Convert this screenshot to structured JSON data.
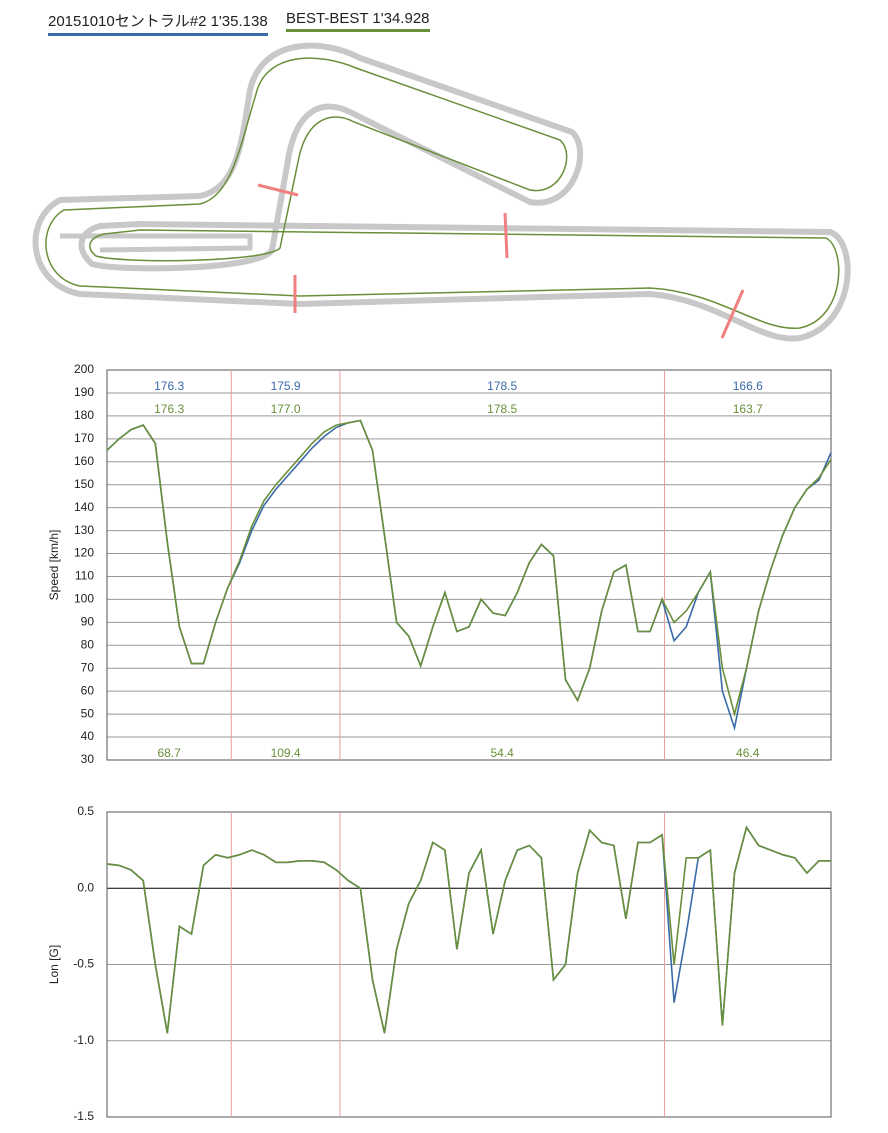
{
  "chart_data": [
    {
      "type": "line",
      "ylabel": "Speed [km/h]",
      "ylim": [
        30,
        200
      ],
      "yticks": [
        30,
        40,
        50,
        60,
        70,
        80,
        90,
        100,
        110,
        120,
        130,
        140,
        150,
        160,
        170,
        180,
        190,
        200
      ],
      "grid": true,
      "sector_lines": [
        10.3,
        19.3,
        46.2
      ],
      "series": [
        {
          "name": "20151010セントラル#2 1'35.138",
          "color": "#3a6aa8",
          "sector_max_labels": [
            "176.3",
            "175.9",
            "178.5",
            "166.6"
          ],
          "values": [
            165,
            170,
            174,
            176,
            168,
            125,
            88,
            72,
            72,
            90,
            105,
            116,
            130,
            141,
            148,
            154,
            160,
            166,
            171,
            175,
            177,
            178,
            165,
            128,
            90,
            84,
            71,
            88,
            103,
            86,
            88,
            100,
            94,
            93,
            103,
            116,
            124,
            119,
            65,
            56,
            70,
            95,
            112,
            115,
            86,
            86,
            100,
            82,
            88,
            103,
            112,
            60,
            44,
            70,
            95,
            113,
            128,
            140,
            148,
            152,
            164
          ]
        },
        {
          "name": "BEST-BEST 1'34.928",
          "color": "#6a8f3a",
          "sector_max_labels": [
            "176.3",
            "177.0",
            "178.5",
            "163.7"
          ],
          "sector_min_labels": [
            "68.7",
            "109.4",
            "54.4",
            "46.4"
          ],
          "values": [
            165,
            170,
            174,
            176,
            168,
            125,
            88,
            72,
            72,
            90,
            105,
            117,
            132,
            143,
            150,
            156,
            162,
            168,
            173,
            176,
            177,
            178,
            165,
            128,
            90,
            84,
            71,
            88,
            103,
            86,
            88,
            100,
            94,
            93,
            103,
            116,
            124,
            119,
            65,
            56,
            70,
            95,
            112,
            115,
            86,
            86,
            100,
            90,
            95,
            103,
            112,
            70,
            50,
            70,
            95,
            113,
            128,
            140,
            148,
            153,
            161
          ]
        }
      ]
    },
    {
      "type": "line",
      "ylabel": "Lon [G]",
      "ylim": [
        -1.5,
        0.5
      ],
      "yticks": [
        -1.5,
        {
          "value": -1,
          "label": "-1.0"
        },
        -0.5,
        {
          "value": 0,
          "label": "0.0"
        },
        0.5
      ],
      "grid": true,
      "sector_lines": [
        10.3,
        19.3,
        46.2
      ],
      "series": [
        {
          "color": "#3a6aa8",
          "values": [
            0.16,
            0.15,
            0.12,
            0.05,
            -0.5,
            -0.95,
            -0.25,
            -0.3,
            0.15,
            0.22,
            0.2,
            0.22,
            0.25,
            0.22,
            0.17,
            0.17,
            0.18,
            0.18,
            0.17,
            0.12,
            0.05,
            0,
            -0.6,
            -0.95,
            -0.4,
            -0.1,
            0.05,
            0.3,
            0.25,
            -0.4,
            0.1,
            0.25,
            -0.3,
            0.05,
            0.25,
            0.28,
            0.2,
            -0.6,
            -0.5,
            0.1,
            0.38,
            0.3,
            0.28,
            -0.2,
            0.3,
            0.3,
            0.35,
            -0.75,
            -0.3,
            0.2,
            0.25,
            -0.9,
            0.1,
            0.4,
            0.28,
            0.25,
            0.22,
            0.2,
            0.1,
            0.18,
            0.18
          ]
        },
        {
          "color": "#6a8f3a",
          "values": [
            0.16,
            0.15,
            0.12,
            0.05,
            -0.5,
            -0.95,
            -0.25,
            -0.3,
            0.15,
            0.22,
            0.2,
            0.22,
            0.25,
            0.22,
            0.17,
            0.17,
            0.18,
            0.18,
            0.17,
            0.12,
            0.05,
            0,
            -0.6,
            -0.95,
            -0.4,
            -0.1,
            0.05,
            0.3,
            0.25,
            -0.4,
            0.1,
            0.25,
            -0.3,
            0.05,
            0.25,
            0.28,
            0.2,
            -0.6,
            -0.5,
            0.1,
            0.38,
            0.3,
            0.28,
            -0.2,
            0.3,
            0.3,
            0.35,
            -0.5,
            0.2,
            0.2,
            0.25,
            -0.9,
            0.1,
            0.4,
            0.28,
            0.25,
            0.22,
            0.2,
            0.1,
            0.18,
            0.18
          ]
        }
      ]
    }
  ]
}
